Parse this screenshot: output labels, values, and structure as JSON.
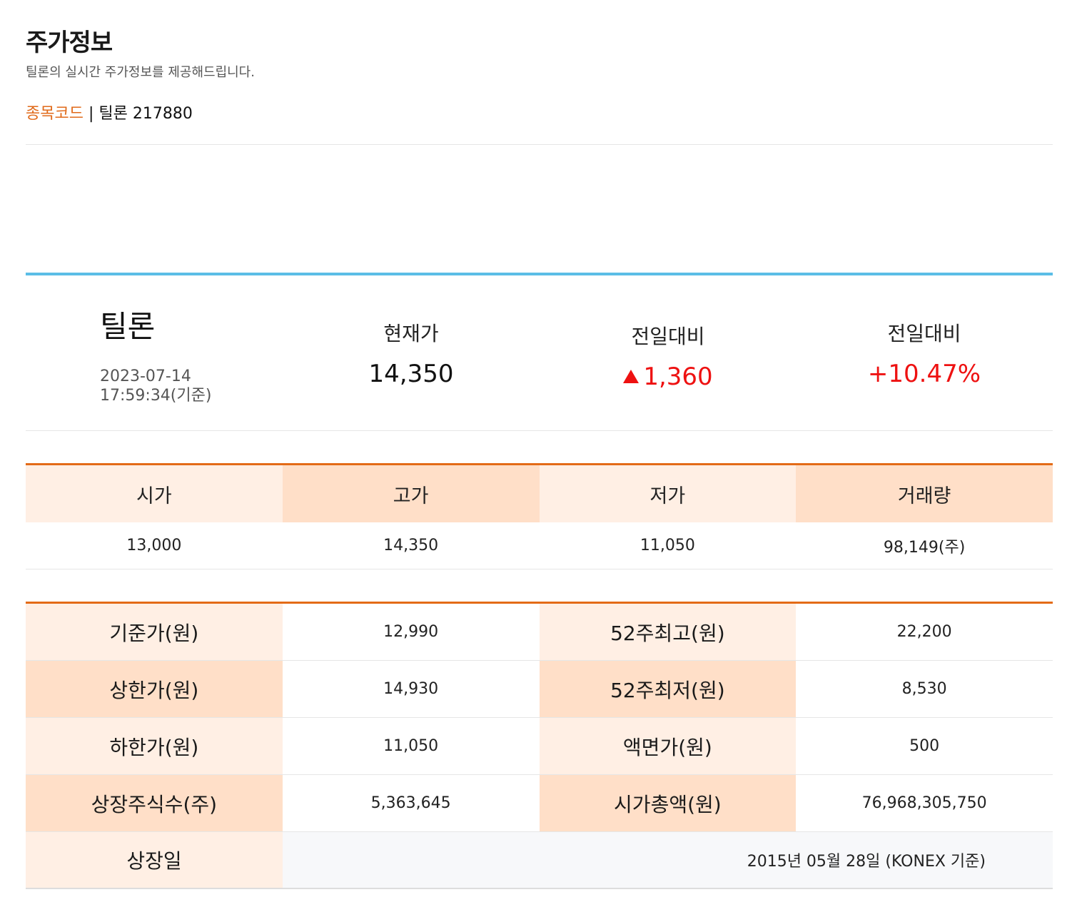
{
  "header": {
    "title": "주가정보",
    "description": "틸론의 실시간 주가정보를 제공해드립니다.",
    "code_label": "종목코드",
    "code_separator": " | ",
    "code_value": "틸론 217880"
  },
  "quote": {
    "name": "틸론",
    "date": "2023-07-14",
    "time": "17:59:34(기준)",
    "current_label": "현재가",
    "current_value": "14,350",
    "change_label": "전일대비",
    "change_value": "1,360",
    "change_pct_label": "전일대비",
    "change_pct_value": "+10.47%",
    "colors": {
      "up": "#ee1111",
      "accent_top": "#5bbde6"
    }
  },
  "ohlc": {
    "headers": [
      "시가",
      "고가",
      "저가",
      "거래량"
    ],
    "values": [
      "13,000",
      "14,350",
      "11,050",
      "98,149(주)"
    ]
  },
  "details": {
    "rows": [
      {
        "k1": "기준가(원)",
        "v1": "12,990",
        "k2": "52주최고(원)",
        "v2": "22,200"
      },
      {
        "k1": "상한가(원)",
        "v1": "14,930",
        "k2": "52주최저(원)",
        "v2": "8,530"
      },
      {
        "k1": "하한가(원)",
        "v1": "11,050",
        "k2": "액면가(원)",
        "v2": "500"
      },
      {
        "k1": "상장주식수(주)",
        "v1": "5,363,645",
        "k2": "시가총액(원)",
        "v2": "76,968,305,750"
      }
    ],
    "listing": {
      "label": "상장일",
      "value": "2015년 05월 28일 (KONEX 기준)"
    },
    "colors": {
      "accent": "#e36b17",
      "light": "#ffefe4",
      "dark": "#ffdfc8"
    }
  }
}
